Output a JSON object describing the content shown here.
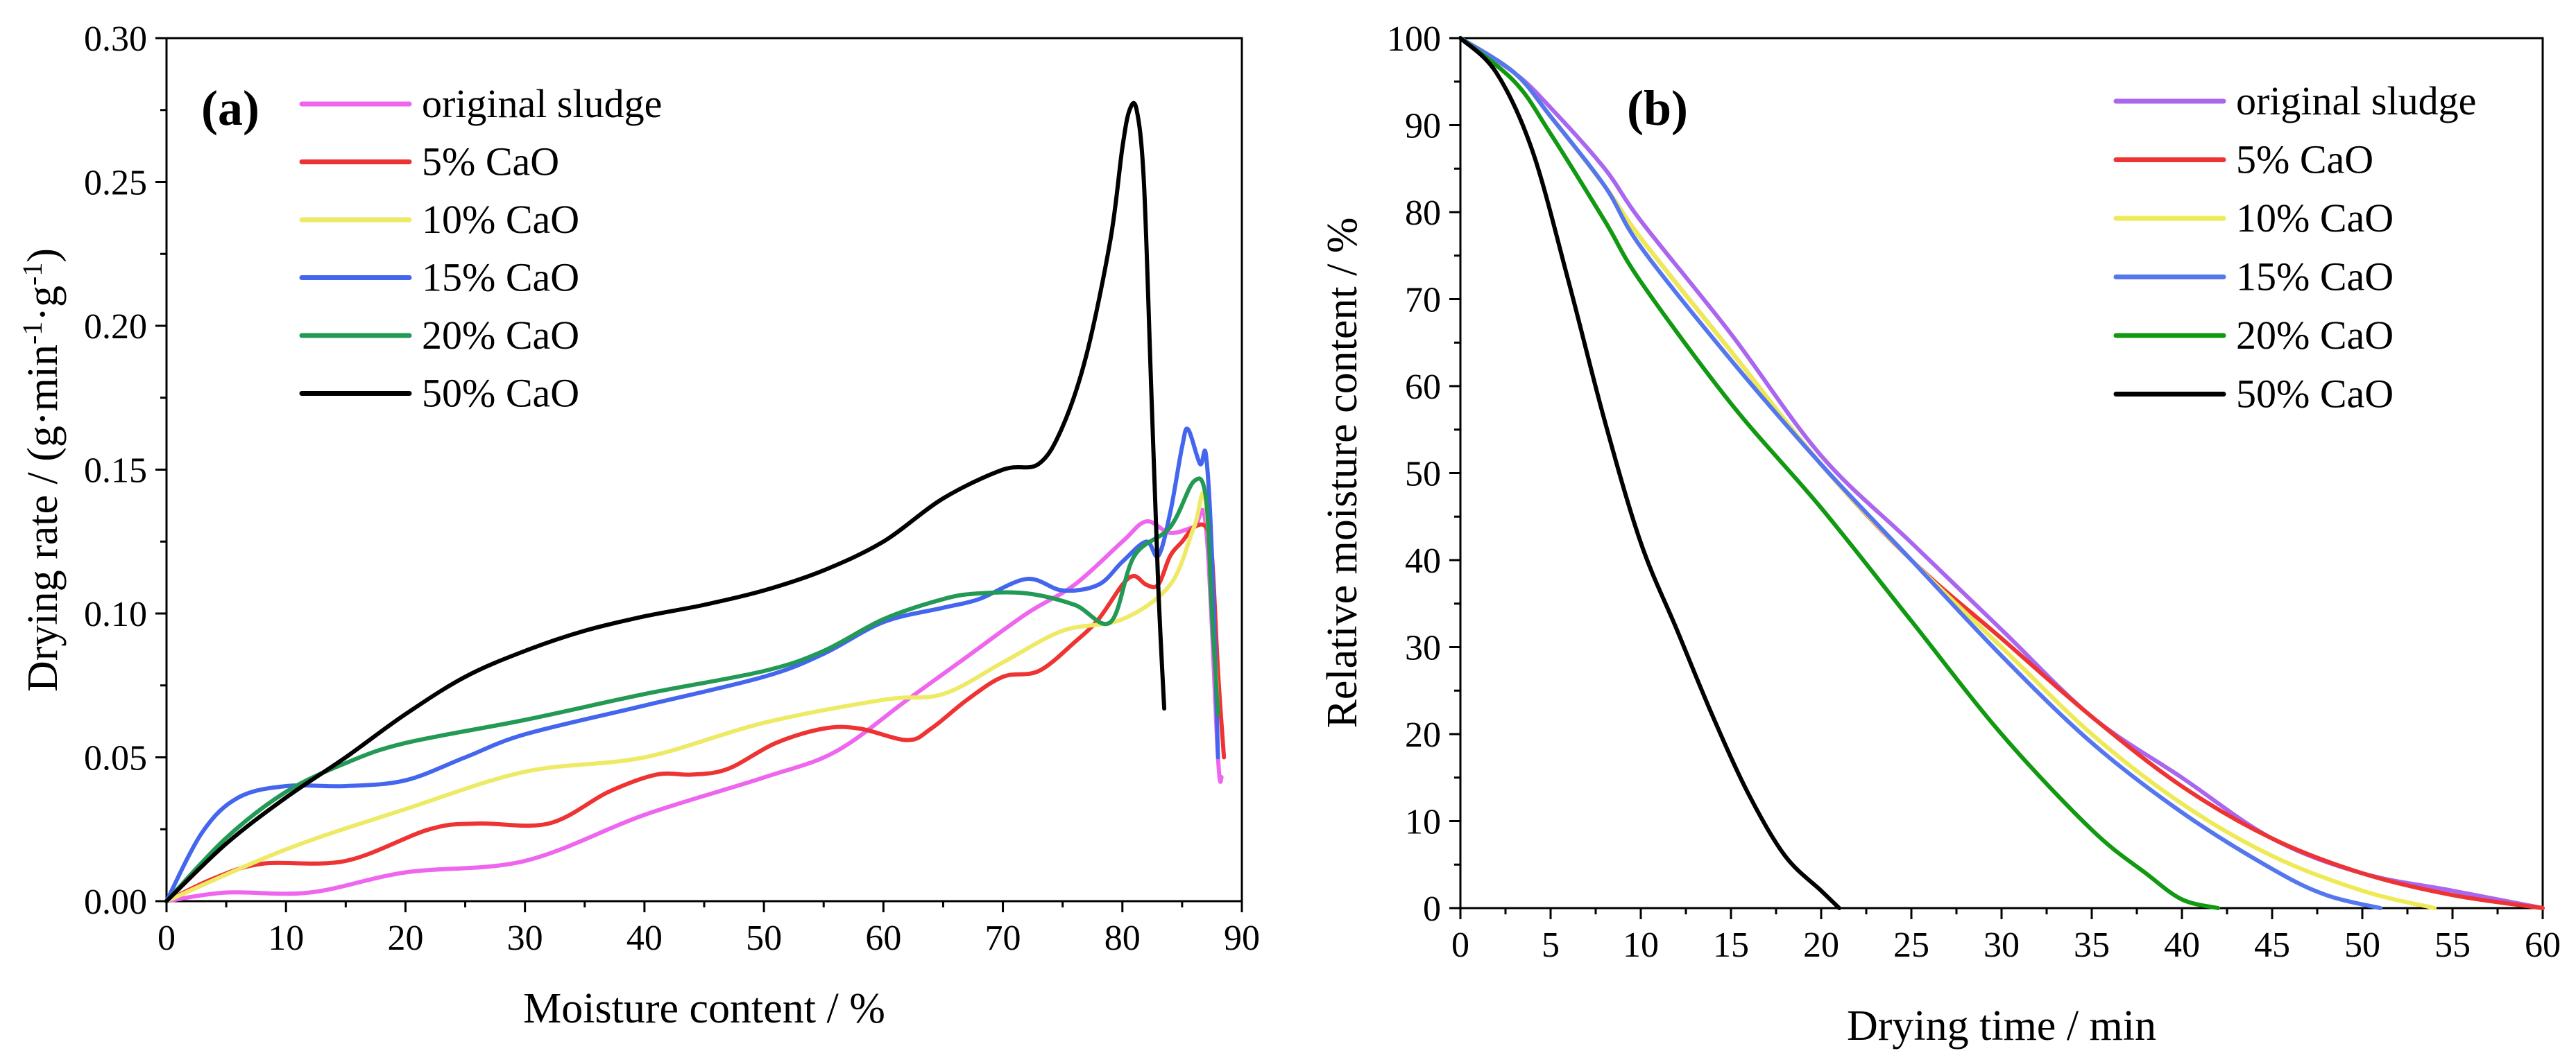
{
  "chart_data": [
    {
      "type": "line",
      "panel_label": "(a)",
      "xlabel": "Moisture content / %",
      "ylabel_text": "Drying rate / (g·min",
      "ylabel_sup1": "-1",
      "ylabel_mid": "·g",
      "ylabel_sup2": "-1",
      "ylabel_end": ")",
      "xlim": [
        0,
        90
      ],
      "ylim": [
        0,
        0.3
      ],
      "xticks": [
        0,
        10,
        20,
        30,
        40,
        50,
        60,
        70,
        80,
        90
      ],
      "xtick_labels": [
        "0",
        "10",
        "20",
        "30",
        "40",
        "50",
        "60",
        "70",
        "80",
        "90"
      ],
      "yticks": [
        0,
        0.05,
        0.1,
        0.15,
        0.2,
        0.25,
        0.3
      ],
      "ytick_labels": [
        "0.00",
        "0.05",
        "0.10",
        "0.15",
        "0.20",
        "0.25",
        "0.30"
      ],
      "legend_position": "top-left",
      "series": [
        {
          "name": "original sludge",
          "color": "#ee66ee",
          "x": [
            0,
            5,
            12,
            20,
            30,
            40,
            50,
            56,
            62,
            67,
            72,
            76,
            80,
            82,
            84,
            86,
            87,
            88,
            88.3
          ],
          "y": [
            0,
            0.003,
            0.003,
            0.01,
            0.014,
            0.03,
            0.043,
            0.052,
            0.07,
            0.085,
            0.1,
            0.11,
            0.125,
            0.132,
            0.128,
            0.13,
            0.13,
            0.05,
            0.043
          ]
        },
        {
          "name": "5% CaO",
          "color": "#ee3333",
          "x": [
            0,
            4,
            8,
            15,
            22,
            26,
            32,
            37,
            41,
            44,
            47,
            51,
            55,
            58,
            62,
            64,
            67,
            70,
            73,
            76,
            78,
            80,
            81,
            82,
            83,
            84,
            85,
            86,
            87,
            87.5,
            88,
            88.5
          ],
          "y": [
            0,
            0.008,
            0.013,
            0.014,
            0.025,
            0.027,
            0.027,
            0.038,
            0.044,
            0.044,
            0.046,
            0.055,
            0.06,
            0.06,
            0.056,
            0.06,
            0.07,
            0.078,
            0.08,
            0.09,
            0.098,
            0.11,
            0.113,
            0.11,
            0.11,
            0.12,
            0.125,
            0.13,
            0.13,
            0.12,
            0.08,
            0.05
          ]
        },
        {
          "name": "10% CaO",
          "color": "#eeea66",
          "x": [
            0,
            10,
            20,
            30,
            40,
            50,
            60,
            65,
            70,
            75,
            80,
            84,
            86,
            87,
            88
          ],
          "y": [
            0,
            0.018,
            0.032,
            0.045,
            0.05,
            0.062,
            0.07,
            0.072,
            0.083,
            0.094,
            0.098,
            0.11,
            0.13,
            0.138,
            0.065
          ]
        },
        {
          "name": "15% CaO",
          "color": "#4466ee",
          "x": [
            0,
            3,
            6,
            10,
            15,
            20,
            25,
            30,
            40,
            50,
            55,
            60,
            65,
            68,
            72,
            75,
            78,
            80,
            82,
            83,
            84,
            85,
            85.5,
            86.5,
            87,
            87.5,
            88
          ],
          "y": [
            0,
            0.024,
            0.036,
            0.04,
            0.04,
            0.042,
            0.05,
            0.058,
            0.068,
            0.078,
            0.086,
            0.097,
            0.102,
            0.105,
            0.112,
            0.108,
            0.11,
            0.118,
            0.125,
            0.12,
            0.135,
            0.158,
            0.164,
            0.152,
            0.155,
            0.12,
            0.05
          ]
        },
        {
          "name": "20% CaO",
          "color": "#229955",
          "x": [
            0,
            5,
            10,
            15,
            20,
            30,
            40,
            50,
            55,
            60,
            65,
            68,
            72,
            76,
            79,
            81,
            84,
            86,
            87,
            87.5,
            88
          ],
          "y": [
            0,
            0.022,
            0.038,
            0.048,
            0.055,
            0.063,
            0.072,
            0.08,
            0.087,
            0.098,
            0.105,
            0.107,
            0.107,
            0.103,
            0.097,
            0.12,
            0.13,
            0.146,
            0.14,
            0.1,
            0.065
          ]
        },
        {
          "name": "50% CaO",
          "color": "#000000",
          "x": [
            0,
            5,
            10,
            15,
            20,
            25,
            30,
            35,
            40,
            45,
            50,
            55,
            60,
            65,
            70,
            73,
            75,
            77,
            79,
            80,
            80.6,
            81.2,
            81.8,
            82.4,
            83,
            83.5
          ],
          "y": [
            0,
            0.02,
            0.036,
            0.05,
            0.065,
            0.078,
            0.087,
            0.094,
            0.099,
            0.103,
            0.108,
            0.115,
            0.125,
            0.14,
            0.15,
            0.152,
            0.165,
            0.19,
            0.23,
            0.262,
            0.275,
            0.275,
            0.25,
            0.18,
            0.11,
            0.067
          ]
        }
      ]
    },
    {
      "type": "line",
      "panel_label": "(b)",
      "xlabel": "Drying time / min",
      "ylabel": "Relative moisture content / %",
      "xlim": [
        0,
        60
      ],
      "ylim": [
        0,
        100
      ],
      "xticks": [
        0,
        5,
        10,
        15,
        20,
        25,
        30,
        35,
        40,
        45,
        50,
        55,
        60
      ],
      "xtick_labels": [
        "0",
        "5",
        "10",
        "15",
        "20",
        "25",
        "30",
        "35",
        "40",
        "45",
        "50",
        "55",
        "60"
      ],
      "yticks": [
        0,
        10,
        20,
        30,
        40,
        50,
        60,
        70,
        80,
        90,
        100
      ],
      "ytick_labels": [
        "0",
        "10",
        "20",
        "30",
        "40",
        "50",
        "60",
        "70",
        "80",
        "90",
        "100"
      ],
      "legend_position": "top-right",
      "series": [
        {
          "name": "original sludge",
          "color": "#aa66ee",
          "x": [
            0,
            3,
            5,
            8,
            10,
            15,
            20,
            25,
            30,
            35,
            40,
            45,
            50,
            55,
            60
          ],
          "y": [
            100,
            96,
            92,
            85,
            79,
            66,
            52,
            42,
            32,
            22,
            15,
            8,
            4,
            2,
            0
          ]
        },
        {
          "name": "5% CaO",
          "color": "#ee3333",
          "x": [
            0,
            3,
            5,
            8,
            10,
            15,
            20,
            25,
            30,
            35,
            40,
            45,
            50,
            55,
            60
          ],
          "y": [
            100,
            96,
            91,
            83,
            77,
            64,
            51,
            40,
            31,
            22,
            14,
            8,
            4,
            1.5,
            0
          ]
        },
        {
          "name": "10% CaO",
          "color": "#eeea55",
          "x": [
            0,
            3,
            5,
            8,
            10,
            15,
            20,
            25,
            30,
            35,
            40,
            45,
            50,
            54
          ],
          "y": [
            100,
            96,
            91,
            83,
            77,
            64,
            51,
            40,
            30,
            20,
            12,
            6,
            2,
            0
          ]
        },
        {
          "name": "15% CaO",
          "color": "#5577ee",
          "x": [
            0,
            3,
            5,
            8,
            10,
            15,
            20,
            25,
            30,
            35,
            40,
            45,
            48,
            51
          ],
          "y": [
            100,
            96,
            91,
            83,
            76,
            63,
            51,
            40,
            29,
            19,
            11,
            4.5,
            1.5,
            0
          ]
        },
        {
          "name": "20% CaO",
          "color": "#119911",
          "x": [
            0,
            3,
            5,
            8,
            10,
            15,
            20,
            25,
            30,
            35,
            38,
            40,
            42
          ],
          "y": [
            100,
            95,
            89,
            79,
            72,
            58,
            46,
            33,
            20,
            9,
            4,
            1,
            0
          ]
        },
        {
          "name": "50% CaO",
          "color": "#000000",
          "x": [
            0,
            2,
            4,
            6,
            8,
            10,
            12,
            14,
            16,
            18,
            20,
            21
          ],
          "y": [
            100,
            96,
            87,
            72,
            56,
            42,
            32,
            22,
            13,
            6,
            2,
            0
          ]
        }
      ]
    }
  ]
}
